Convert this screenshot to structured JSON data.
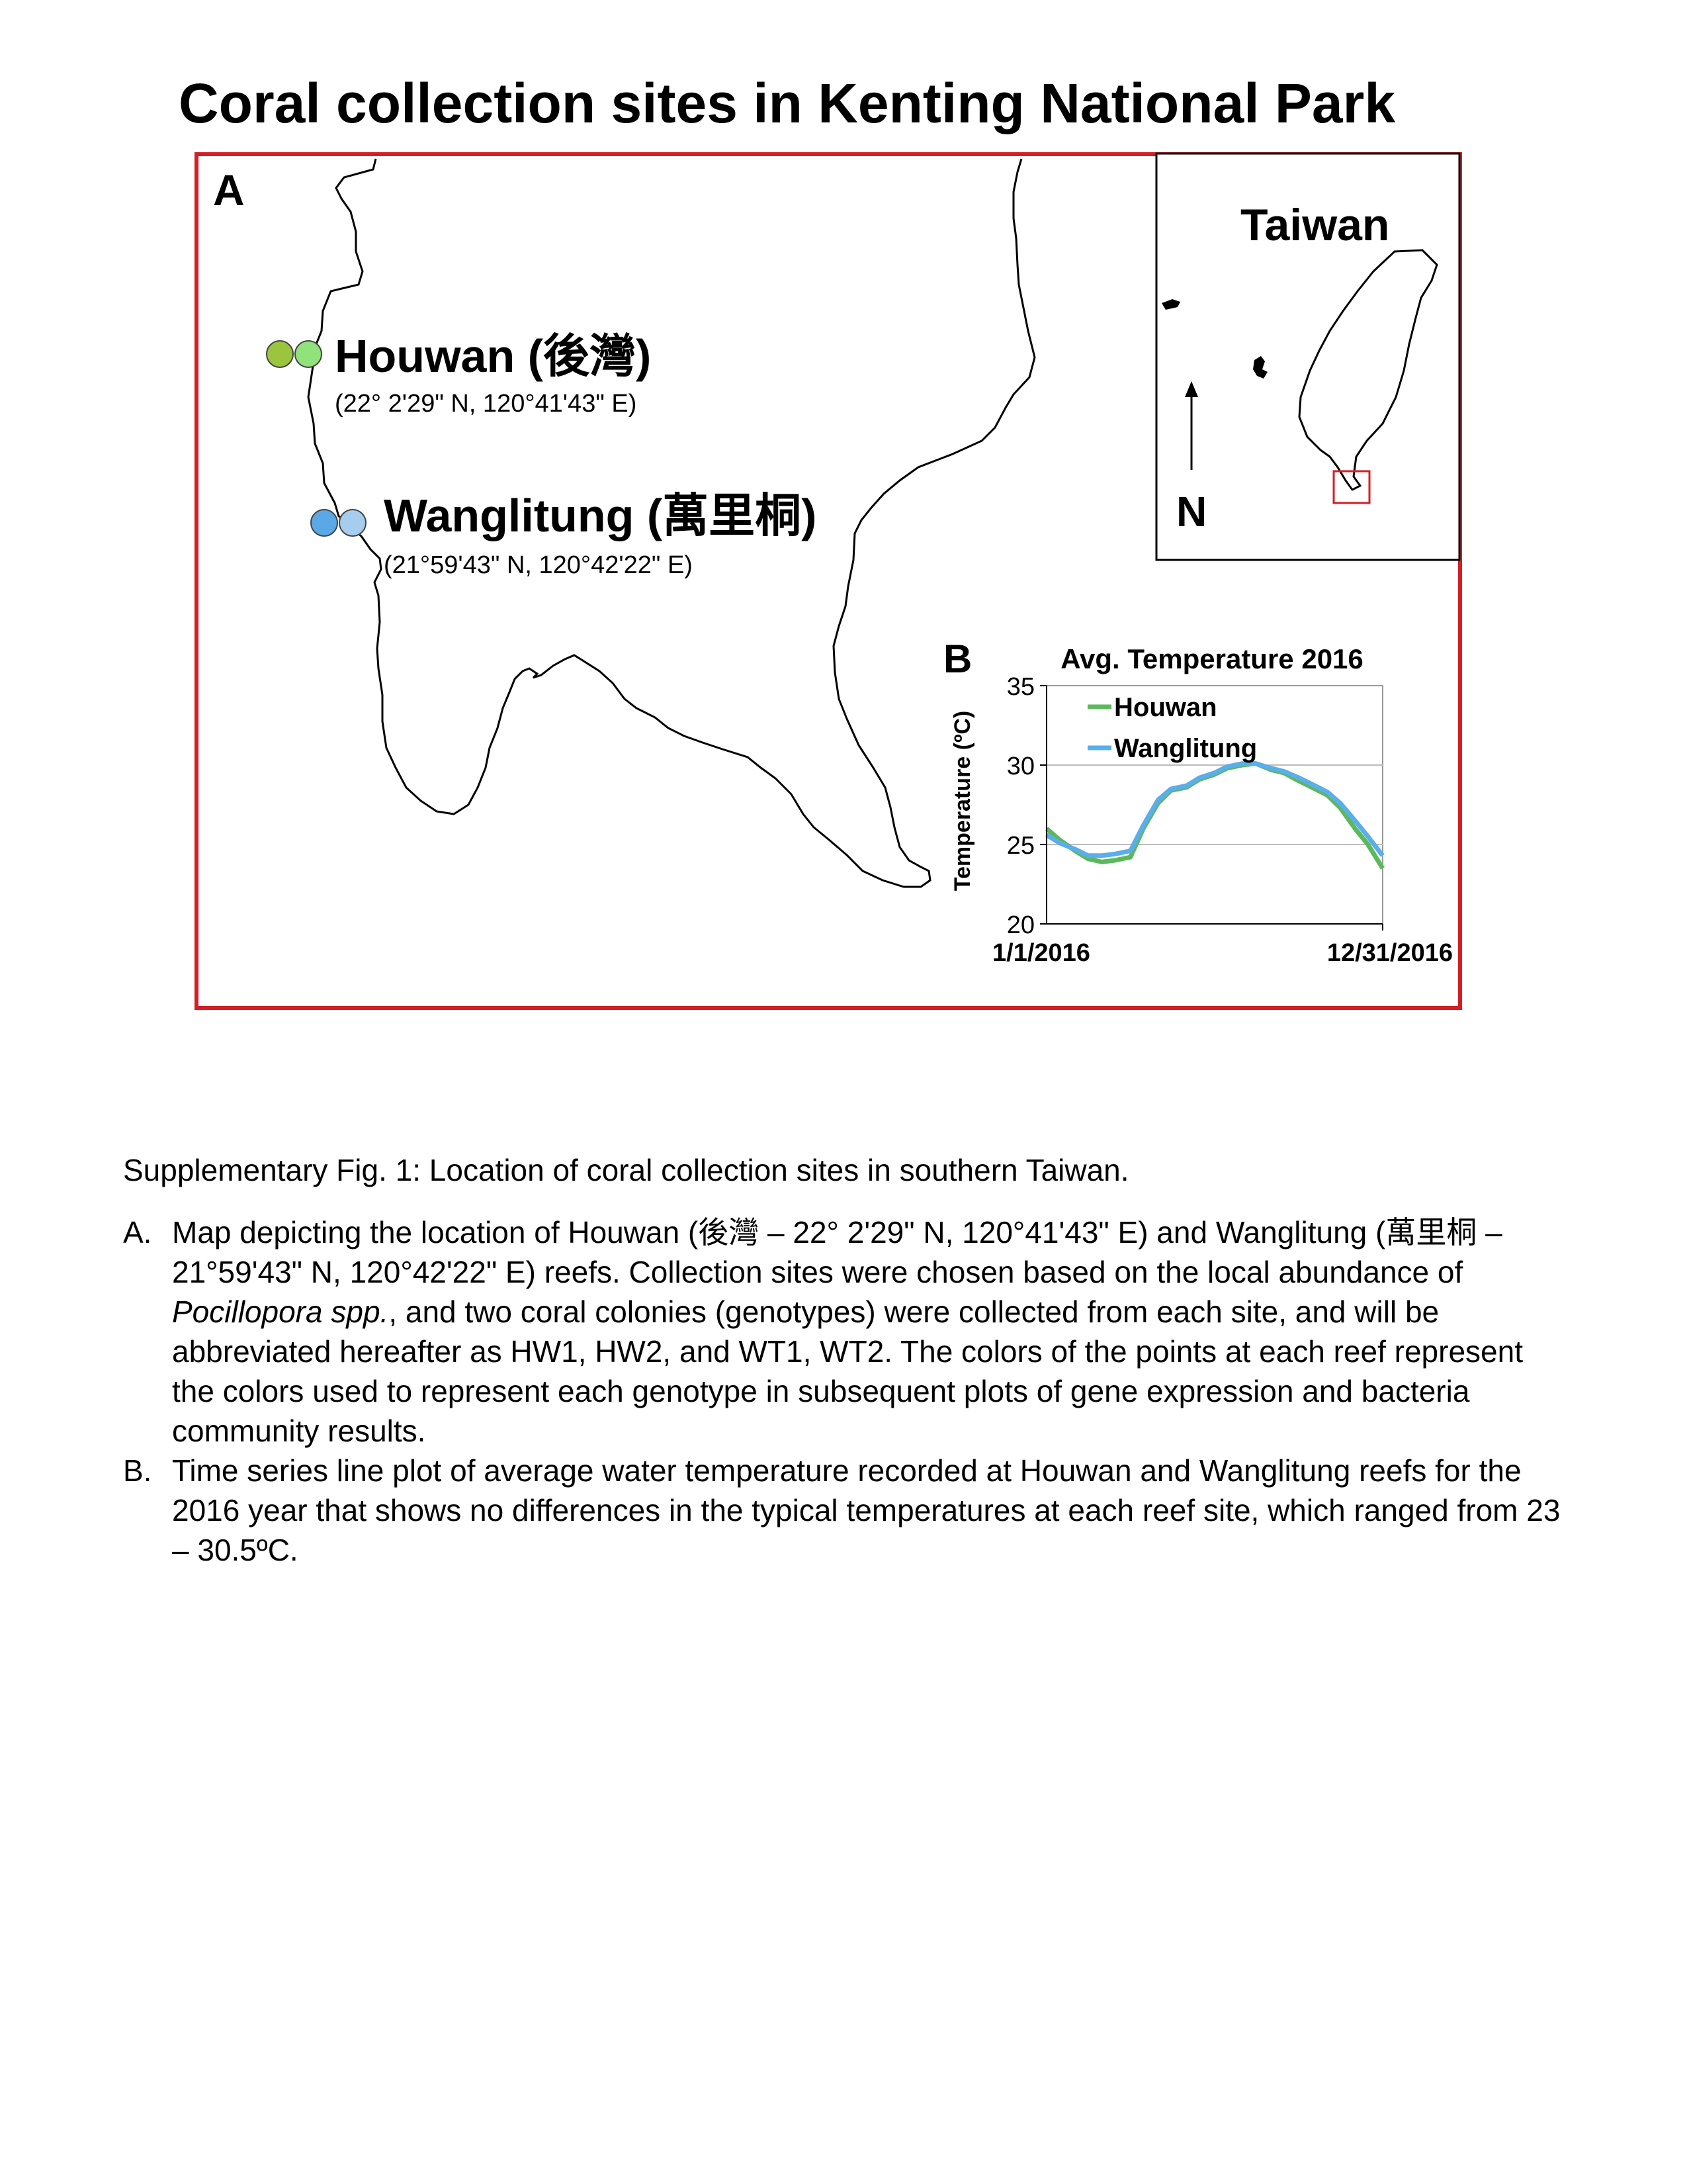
{
  "figure_title": "Coral collection sites in Kenting National Park",
  "panel_a": {
    "label": "A",
    "sites": [
      {
        "name": "Houwan (後灣)",
        "coords": "(22° 2'29\" N, 120°41'43\" E)",
        "genotype_colors": [
          "#9bc53d",
          "#8fe37a"
        ]
      },
      {
        "name": "Wanglitung (萬里桐)",
        "coords": "(21°59'43\" N, 120°42'22\" E)",
        "genotype_colors": [
          "#5aa9e6",
          "#a7cdee"
        ]
      }
    ],
    "inset": {
      "label": "Taiwan",
      "north_label": "N"
    },
    "colors": {
      "frame": "#d21f26",
      "coastline": "#000000"
    }
  },
  "panel_b": {
    "label": "B"
  },
  "chart_data": {
    "type": "line",
    "title": "Avg. Temperature 2016",
    "ylabel": "Temperature (ºC)",
    "xlabel": "",
    "x_tick_labels": [
      "1/1/2016",
      "12/31/2016"
    ],
    "x_range": [
      "2016-01-01",
      "2016-12-31"
    ],
    "ylim": [
      20,
      35
    ],
    "y_ticks": [
      20,
      25,
      30,
      35
    ],
    "gridlines_y": [
      25,
      30
    ],
    "legend_position": "top-left",
    "x": [
      "2016-01-01",
      "2016-01-15",
      "2016-02-01",
      "2016-02-15",
      "2016-03-01",
      "2016-03-15",
      "2016-04-01",
      "2016-04-15",
      "2016-05-01",
      "2016-05-15",
      "2016-06-01",
      "2016-06-15",
      "2016-07-01",
      "2016-07-15",
      "2016-08-01",
      "2016-08-15",
      "2016-09-01",
      "2016-09-15",
      "2016-10-01",
      "2016-10-15",
      "2016-11-01",
      "2016-11-15",
      "2016-12-01",
      "2016-12-15",
      "2016-12-31"
    ],
    "series": [
      {
        "name": "Houwan",
        "color": "#5cb85c",
        "values": [
          26.0,
          25.3,
          24.6,
          24.1,
          23.9,
          24.0,
          24.2,
          26.0,
          27.6,
          28.4,
          28.6,
          29.1,
          29.4,
          29.8,
          30.0,
          30.1,
          29.7,
          29.5,
          29.0,
          28.6,
          28.1,
          27.3,
          26.0,
          25.0,
          23.5
        ]
      },
      {
        "name": "Wanglitung",
        "color": "#5aaeea",
        "values": [
          25.6,
          25.1,
          24.7,
          24.3,
          24.3,
          24.4,
          24.6,
          26.2,
          27.8,
          28.5,
          28.7,
          29.2,
          29.5,
          29.9,
          30.1,
          30.1,
          29.8,
          29.6,
          29.2,
          28.8,
          28.3,
          27.6,
          26.5,
          25.5,
          24.3
        ]
      }
    ]
  },
  "caption": {
    "intro": "Supplementary Fig. 1: Location of coral collection sites in southern Taiwan.",
    "items": [
      {
        "label": "A.",
        "text_before": "Map depicting the location of Houwan (後灣 – 22° 2'29\" N, 120°41'43\" E) and Wanglitung (萬里桐 –21°59'43\" N, 120°42'22\" E) reefs. Collection sites were chosen based on the local abundance of ",
        "text_italic": "Pocillopora spp.",
        "text_after": ", and two coral colonies (genotypes) were collected from each site, and will be abbreviated hereafter as HW1, HW2, and WT1, WT2. The colors of the points at each reef represent the colors used to represent each genotype in subsequent plots of gene expression and bacteria community results."
      },
      {
        "label": "B.",
        "text": "Time series line plot of average water temperature recorded at Houwan and Wanglitung reefs for the 2016 year that shows no differences in the typical temperatures at each reef site, which ranged from 23 – 30.5ºC."
      }
    ]
  }
}
